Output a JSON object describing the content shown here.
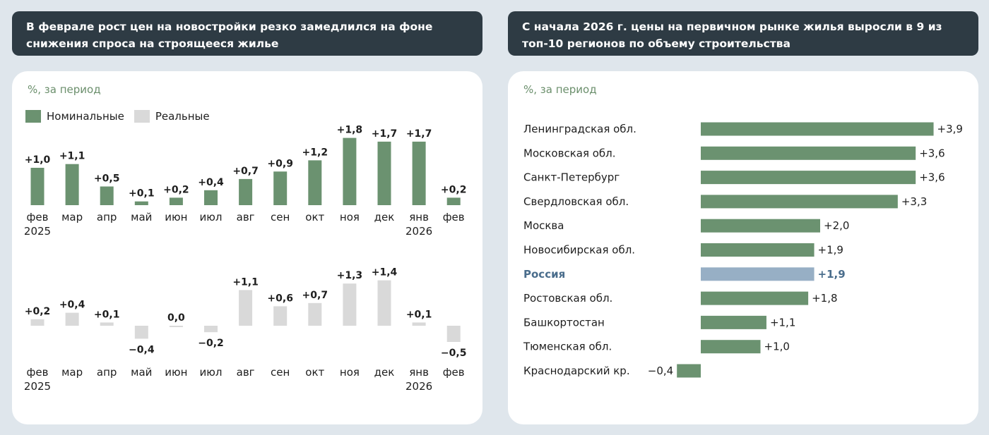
{
  "left": {
    "title": "В феврале рост цен на новостройки резко замедлился на фоне снижения спроса на строящееся жилье",
    "subtitle": "%, за период",
    "legend": {
      "nominal": "Номинальные",
      "real": "Реальные"
    }
  },
  "right": {
    "title": "С начала 2026 г. цены на первичном рынке жилья выросли в 9 из топ-10 регионов по объему строительства",
    "subtitle": "%, за период"
  },
  "colors": {
    "green": "#6b9270",
    "grey": "#d9d9d9",
    "russia": "#97afc5",
    "russia_text": "#4a6d8c",
    "dark": "#1e1e1e"
  },
  "chart_data": [
    {
      "type": "bar",
      "categories": [
        "фев 2025",
        "мар",
        "апр",
        "май",
        "июн",
        "июл",
        "авг",
        "сен",
        "окт",
        "ноя",
        "дек",
        "янв 2026",
        "фев"
      ],
      "series": [
        {
          "name": "Номинальные",
          "values": [
            1.0,
            1.1,
            0.5,
            0.1,
            0.2,
            0.4,
            0.7,
            0.9,
            1.2,
            1.8,
            1.7,
            1.7,
            0.2
          ],
          "labels": [
            "+1,0",
            "+1,1",
            "+0,5",
            "+0,1",
            "+0,2",
            "+0,4",
            "+0,7",
            "+0,9",
            "+1,2",
            "+1,8",
            "+1,7",
            "+1,7",
            "+0,2"
          ]
        },
        {
          "name": "Реальные",
          "values": [
            0.2,
            0.4,
            0.1,
            -0.4,
            0.0,
            -0.2,
            1.1,
            0.6,
            0.7,
            1.3,
            1.4,
            0.1,
            -0.5
          ],
          "labels": [
            "+0,2",
            "+0,4",
            "+0,1",
            "−0,4",
            "0,0",
            "−0,2",
            "+1,1",
            "+0,6",
            "+0,7",
            "+1,3",
            "+1,4",
            "+0,1",
            "−0,5"
          ]
        }
      ]
    },
    {
      "type": "bar",
      "orientation": "horizontal",
      "categories": [
        "Ленинградская обл.",
        "Московская обл.",
        "Санкт-Петербург",
        "Свердловская обл.",
        "Москва",
        "Новосибирская обл.",
        "Россия",
        "Ростовская обл.",
        "Башкортостан",
        "Тюменская обл.",
        "Краснодарский кр."
      ],
      "values": [
        3.9,
        3.6,
        3.6,
        3.3,
        2.0,
        1.9,
        1.9,
        1.8,
        1.1,
        1.0,
        -0.4
      ],
      "labels": [
        "+3,9",
        "+3,6",
        "+3,6",
        "+3,3",
        "+2,0",
        "+1,9",
        "+1,9",
        "+1,8",
        "+1,1",
        "+1,0",
        "−0,4"
      ],
      "highlight": "Россия"
    }
  ]
}
